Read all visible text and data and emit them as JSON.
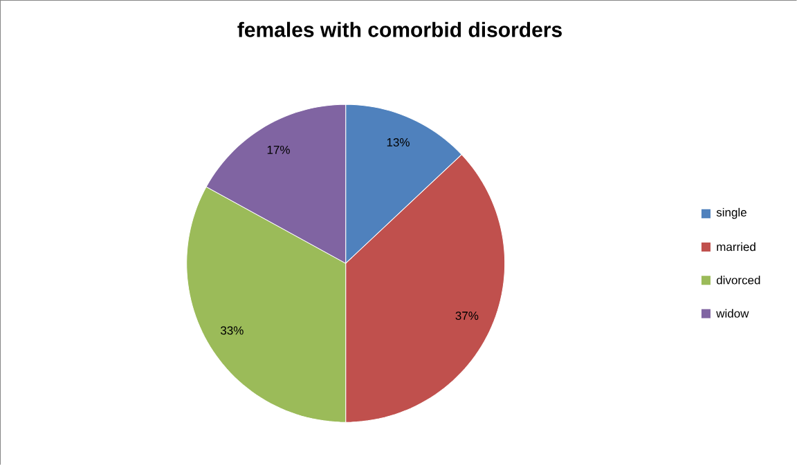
{
  "chart_data": {
    "type": "pie",
    "title": "females with comorbid disorders",
    "categories": [
      "single",
      "married",
      "divorced",
      "widow"
    ],
    "values": [
      13,
      37,
      33,
      17
    ],
    "colors": [
      "#4f81bd",
      "#c0504d",
      "#9bbb59",
      "#8064a2"
    ],
    "value_labels": [
      "13%",
      "37%",
      "33%",
      "17%"
    ],
    "legend": "right"
  }
}
